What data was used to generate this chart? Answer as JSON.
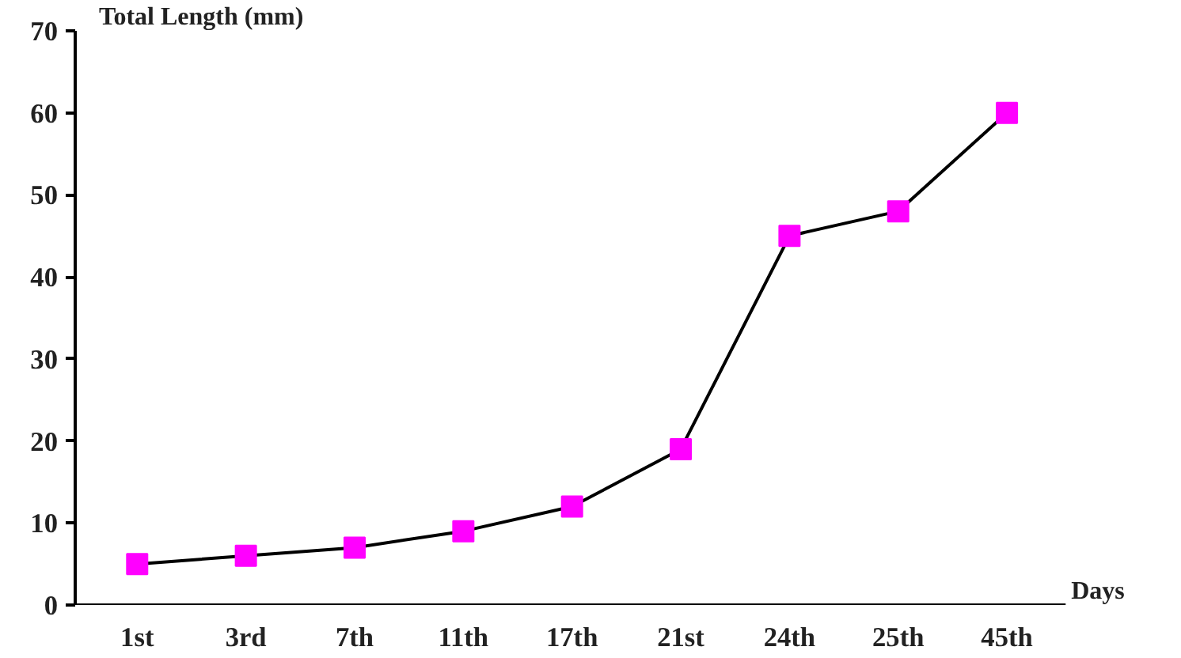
{
  "chart_data": {
    "type": "line",
    "ylabel": "Total Length (mm)",
    "xlabel": "Days",
    "categories": [
      "1st",
      "3rd",
      "7th",
      "11th",
      "17th",
      "21st",
      "24th",
      "25th",
      "45th"
    ],
    "series": [
      {
        "color": "#000000",
        "colors": [
          "#ff00ff",
          "#ff00ff",
          "#ff00ff",
          "#ff00ff",
          "#ff00ff",
          "#ff00ff",
          "#ff00ff",
          "#ff00ff",
          "#ff00ff"
        ],
        "values": [
          5,
          6,
          7,
          9,
          12,
          19,
          45,
          48,
          60
        ]
      }
    ],
    "ylim": [
      0,
      70
    ],
    "yticks": [
      0,
      10,
      20,
      30,
      40,
      50,
      60,
      70
    ],
    "grid": false,
    "marker": "square",
    "line_style": "solid"
  }
}
